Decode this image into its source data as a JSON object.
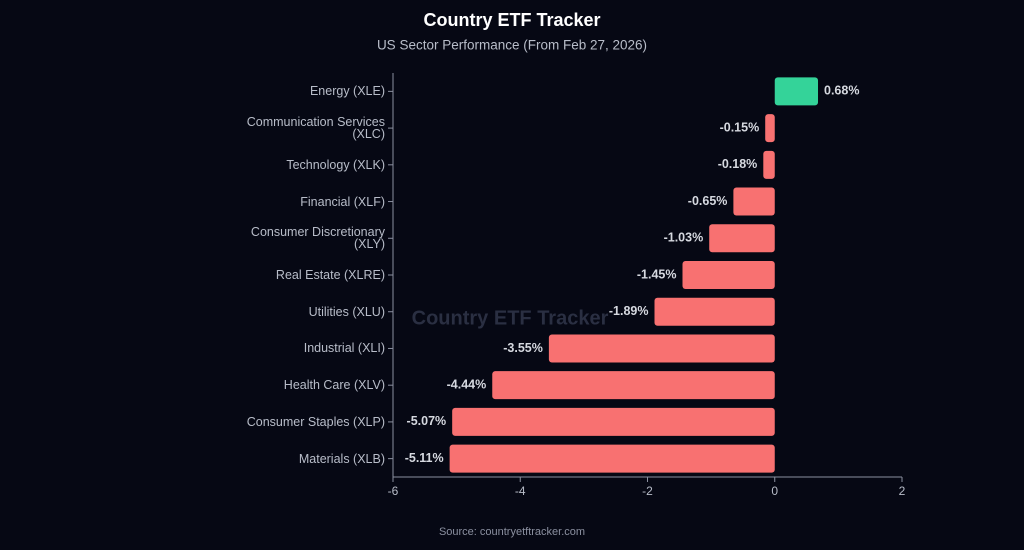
{
  "chart_data": {
    "type": "bar",
    "orientation": "horizontal",
    "title": "Country ETF Tracker",
    "subtitle": "US Sector Performance (From Feb 27, 2026)",
    "source": "Source: countryetftracker.com",
    "watermark": "Country ETF Tracker",
    "categories": [
      "Energy (XLE)",
      "Communication Services (XLC)",
      "Technology (XLK)",
      "Financial (XLF)",
      "Consumer Discretionary (XLY)",
      "Real Estate (XLRE)",
      "Utilities (XLU)",
      "Industrial (XLI)",
      "Health Care (XLV)",
      "Consumer Staples (XLP)",
      "Materials (XLB)"
    ],
    "values": [
      0.68,
      -0.15,
      -0.18,
      -0.65,
      -1.03,
      -1.45,
      -1.89,
      -3.55,
      -4.44,
      -5.07,
      -5.11
    ],
    "value_labels": [
      "0.68%",
      "-0.15%",
      "-0.18%",
      "-0.65%",
      "-1.03%",
      "-1.45%",
      "-1.89%",
      "-3.55%",
      "-4.44%",
      "-5.07%",
      "-5.11%"
    ],
    "positive_color": "#34d399",
    "negative_color": "#f87171",
    "xlim": [
      -6,
      2
    ],
    "xticks": [
      -6,
      -4,
      -2,
      0,
      2
    ]
  }
}
